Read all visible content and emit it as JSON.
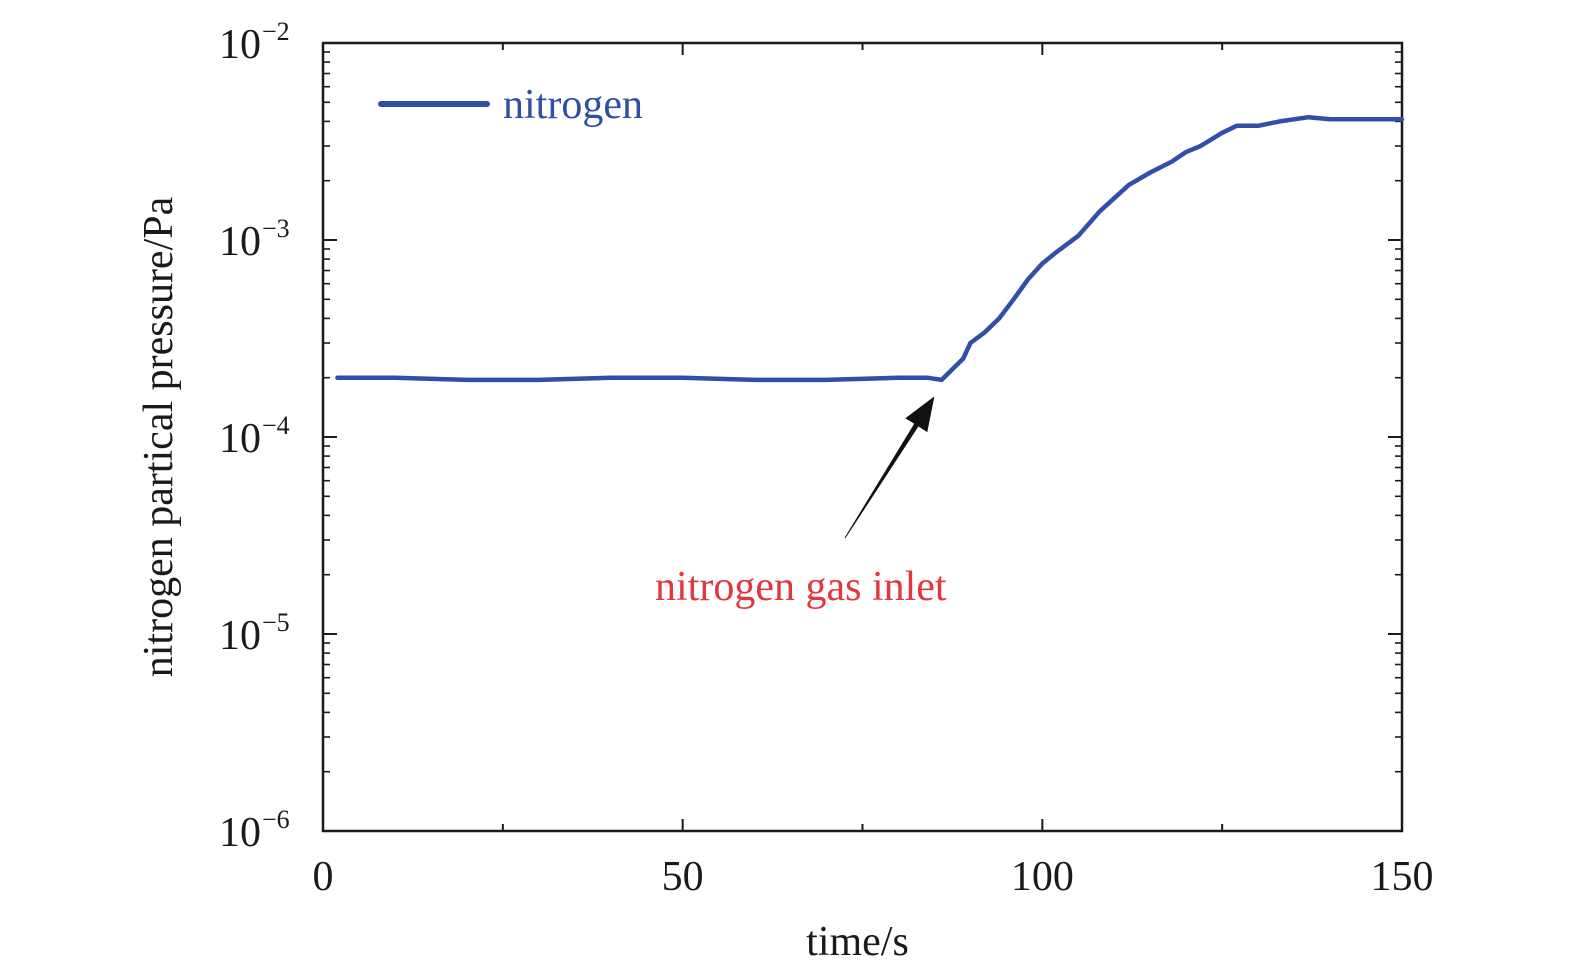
{
  "colors": {
    "series": "#2f4fa8",
    "annotation_text": "#e0383e",
    "arrow": "#111111",
    "axis": "#1a1a1a"
  },
  "chart_data": {
    "type": "line",
    "title": "",
    "xlabel": "time/s",
    "ylabel": "nitrogen partical pressure/Pa",
    "xlim": [
      0,
      150
    ],
    "ylim": [
      1e-06,
      0.01
    ],
    "yscale": "log",
    "grid": false,
    "legend_position": "top-left",
    "x_ticks": [
      {
        "value": 0,
        "label": "0"
      },
      {
        "value": 50,
        "label": "50"
      },
      {
        "value": 100,
        "label": "100"
      },
      {
        "value": 150,
        "label": "150"
      }
    ],
    "y_ticks": [
      {
        "value": 1e-06,
        "base": "10",
        "exp": "−6"
      },
      {
        "value": 1e-05,
        "base": "10",
        "exp": "−5"
      },
      {
        "value": 0.0001,
        "base": "10",
        "exp": "−4"
      },
      {
        "value": 0.001,
        "base": "10",
        "exp": "−3"
      },
      {
        "value": 0.01,
        "base": "10",
        "exp": "−2"
      }
    ],
    "series": [
      {
        "name": "nitrogen",
        "x": [
          2,
          10,
          20,
          30,
          40,
          45,
          50,
          60,
          70,
          80,
          84,
          86,
          88,
          89,
          90,
          92,
          94,
          96,
          98,
          100,
          102,
          105,
          108,
          112,
          115,
          118,
          120,
          122,
          125,
          127,
          130,
          133,
          137,
          140,
          145,
          150
        ],
        "y": [
          0.0002,
          0.0002,
          0.000195,
          0.000195,
          0.0002,
          0.0002,
          0.0002,
          0.000195,
          0.000195,
          0.0002,
          0.0002,
          0.000195,
          0.00023,
          0.00025,
          0.0003,
          0.00034,
          0.0004,
          0.0005,
          0.00063,
          0.00076,
          0.00087,
          0.00105,
          0.0014,
          0.0019,
          0.0022,
          0.0025,
          0.0028,
          0.003,
          0.0035,
          0.0038,
          0.0038,
          0.004,
          0.0042,
          0.0041,
          0.0041,
          0.0041
        ]
      }
    ],
    "annotations": [
      {
        "text": "nitrogen gas inlet",
        "points_to": {
          "x": 85,
          "y": 0.000185
        }
      }
    ]
  }
}
